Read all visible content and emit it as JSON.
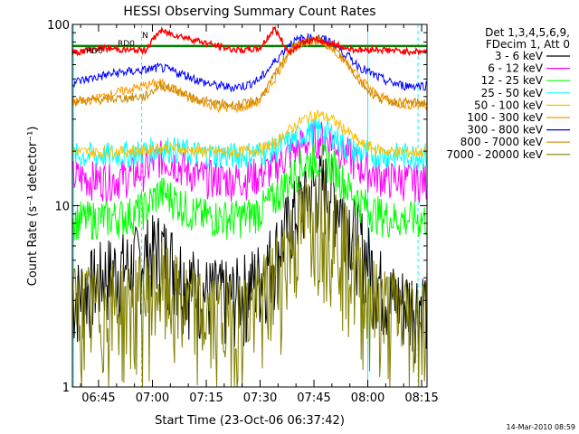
{
  "chart_data": {
    "type": "line",
    "title": "HESSI Observing Summary Count Rates",
    "xlabel": "Start Time (23-Oct-06 06:37:42)",
    "ylabel": "Count Rate (s⁻¹ detector⁻¹)",
    "y_scale": "log",
    "ylim": [
      1,
      100
    ],
    "xlim": [
      "06:37:42",
      "08:16:30"
    ],
    "y_tick_labels": [
      "1",
      "10",
      "100"
    ],
    "x_tick_labels": [
      "06:45",
      "07:00",
      "07:15",
      "07:30",
      "07:45",
      "08:00",
      "08:15"
    ],
    "legend_header": [
      "Det 1,3,4,5,6,9,",
      "FDecim 1, Att 0"
    ],
    "legend_position": "right",
    "x": [
      "06:38",
      "06:42",
      "06:46",
      "06:50",
      "06:54",
      "06:58",
      "07:02",
      "07:06",
      "07:10",
      "07:14",
      "07:18",
      "07:22",
      "07:26",
      "07:30",
      "07:34",
      "07:38",
      "07:42",
      "07:46",
      "07:50",
      "07:54",
      "07:58",
      "08:02",
      "08:06",
      "08:10",
      "08:14"
    ],
    "series": [
      {
        "name": "3 - 6 keV",
        "color": "#000000",
        "values": [
          3.2,
          3.6,
          4.2,
          4.6,
          4.8,
          5.5,
          6.0,
          5.0,
          4.0,
          3.4,
          3.3,
          3.2,
          3.6,
          4.2,
          5.5,
          8.0,
          11.0,
          13.0,
          12.5,
          9.0,
          6.5,
          4.2,
          3.2,
          3.0,
          3.0
        ]
      },
      {
        "name": "6 - 12 keV",
        "color": "#ff00ff",
        "values": [
          14.5,
          14.3,
          14.0,
          14.2,
          14.8,
          16.0,
          18.5,
          17.5,
          15.5,
          14.5,
          14.2,
          14.0,
          14.2,
          15.0,
          16.5,
          19.5,
          22.0,
          24.0,
          23.0,
          19.5,
          16.5,
          15.0,
          14.2,
          14.0,
          13.8
        ]
      },
      {
        "name": "12 - 25 keV",
        "color": "#00ff00",
        "values": [
          8.5,
          8.5,
          8.6,
          8.7,
          9.0,
          9.8,
          12.0,
          11.0,
          9.5,
          8.8,
          8.7,
          8.6,
          8.8,
          9.5,
          11.0,
          14.0,
          17.0,
          18.5,
          17.0,
          13.0,
          10.5,
          9.2,
          8.6,
          8.5,
          8.5
        ]
      },
      {
        "name": "25 - 50 keV",
        "color": "#00ffff",
        "values": [
          19.0,
          19.0,
          19.0,
          19.2,
          19.5,
          20.0,
          21.0,
          20.5,
          19.8,
          19.3,
          19.2,
          19.0,
          19.2,
          19.8,
          20.5,
          22.5,
          25.0,
          26.5,
          25.0,
          21.0,
          19.8,
          19.3,
          19.0,
          19.0,
          19.0
        ]
      },
      {
        "name": "50 - 100 keV",
        "color": "#ffbf00",
        "values": [
          20.0,
          19.8,
          19.8,
          20.0,
          20.0,
          20.2,
          21.0,
          20.8,
          20.2,
          20.0,
          20.0,
          19.8,
          20.0,
          20.5,
          22.0,
          26.0,
          30.0,
          32.0,
          30.0,
          26.0,
          22.0,
          20.5,
          20.0,
          19.8,
          19.8
        ]
      },
      {
        "name": "100 - 300 keV",
        "color": "#ff9900",
        "values": [
          37.0,
          38.0,
          40.0,
          42.0,
          44.0,
          46.0,
          48.0,
          44.0,
          40.0,
          37.0,
          35.0,
          34.5,
          35.0,
          38.0,
          50.0,
          70.0,
          80.0,
          82.0,
          75.0,
          62.0,
          50.0,
          42.0,
          38.0,
          36.0,
          36.0
        ]
      },
      {
        "name": "300 - 800 keV",
        "color": "#0000ff",
        "values": [
          48.0,
          50.0,
          52.0,
          54.0,
          55.0,
          56.0,
          58.0,
          55.0,
          52.0,
          48.0,
          46.0,
          45.0,
          46.0,
          50.0,
          62.0,
          78.0,
          84.0,
          85.0,
          80.0,
          68.0,
          58.0,
          52.0,
          48.0,
          46.0,
          46.0
        ]
      },
      {
        "name": "800 - 7000 keV",
        "color": "#cc8800",
        "values": [
          38.0,
          38.0,
          38.5,
          39.0,
          39.5,
          40.0,
          46.0,
          44.0,
          40.0,
          38.0,
          36.5,
          36.0,
          36.5,
          39.0,
          52.0,
          72.0,
          80.0,
          82.0,
          76.0,
          62.0,
          48.0,
          40.0,
          38.0,
          37.0,
          37.0
        ]
      },
      {
        "name": "7000 - 20000 keV",
        "color": "#808000",
        "values": [
          2.8,
          2.8,
          2.8,
          2.9,
          3.0,
          3.2,
          3.8,
          3.2,
          2.8,
          2.6,
          2.5,
          2.4,
          2.6,
          3.0,
          4.0,
          6.0,
          8.5,
          10.0,
          9.0,
          6.0,
          4.0,
          3.0,
          2.7,
          2.6,
          2.5
        ]
      }
    ],
    "red_trace": {
      "color": "#ff0000",
      "values": [
        70.0,
        72.0,
        74.0,
        73.0,
        72.0,
        72.0,
        92.0,
        88.0,
        84.0,
        80.0,
        76.0,
        73.0,
        72.0,
        74.0,
        95.0,
        70.0,
        80.0,
        82.0,
        78.0,
        74.0,
        72.0,
        73.0,
        72.0,
        71.0,
        71.0
      ]
    },
    "green_level": {
      "color": "#008000",
      "value": 76
    },
    "annotations": {
      "rd0_left": "RD0",
      "rd0_top": "RD0",
      "night": "N"
    },
    "vertical_markers": [
      {
        "time": "06:38",
        "style": "solid",
        "color": "#00ffff"
      },
      {
        "time": "06:57",
        "style": "dashed",
        "color": "#00ffff"
      },
      {
        "time": "08:00",
        "style": "solid",
        "color": "#00ffff"
      },
      {
        "time": "08:14",
        "style": "dashed",
        "color": "#00ffff"
      }
    ],
    "footer_timestamp": "14-Mar-2010 08:59"
  }
}
